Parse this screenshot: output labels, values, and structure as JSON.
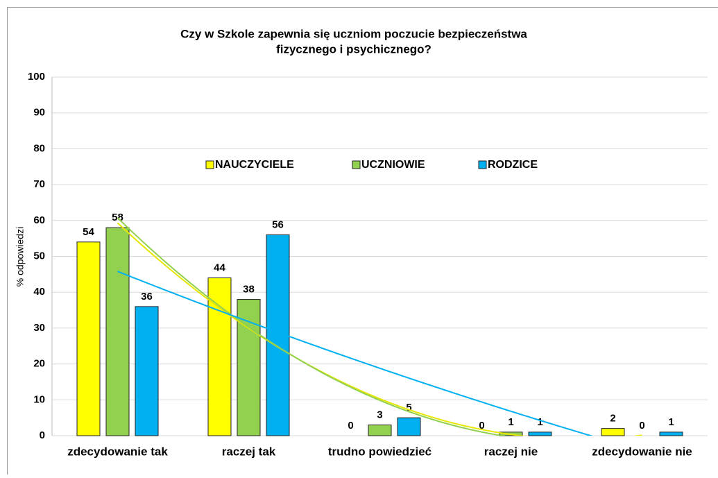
{
  "chart_data": {
    "type": "bar",
    "title": [
      "Czy w Szkole zapewnia się uczniom poczucie bezpieczeństwa",
      "fizycznego i psychicznego?"
    ],
    "ylabel": "% odpowiedzi",
    "categories": [
      "zdecydowanie tak",
      "raczej tak",
      "trudno powiedzieć",
      "raczej nie",
      "zdecydowanie nie"
    ],
    "series": [
      {
        "name": "NAUCZYCIELE",
        "color": "#ffff00",
        "values": [
          54,
          44,
          0,
          0,
          2
        ]
      },
      {
        "name": "UCZNIOWIE",
        "color": "#92d050",
        "values": [
          58,
          38,
          3,
          1,
          0
        ]
      },
      {
        "name": "RODZICE",
        "color": "#00b0f0",
        "values": [
          36,
          56,
          5,
          1,
          1
        ]
      }
    ],
    "ylim": [
      0,
      100
    ],
    "yticks": [
      0,
      10,
      20,
      30,
      40,
      50,
      60,
      70,
      80,
      90,
      100
    ],
    "grid": true,
    "legend": "top",
    "trendline": "polynomial"
  }
}
